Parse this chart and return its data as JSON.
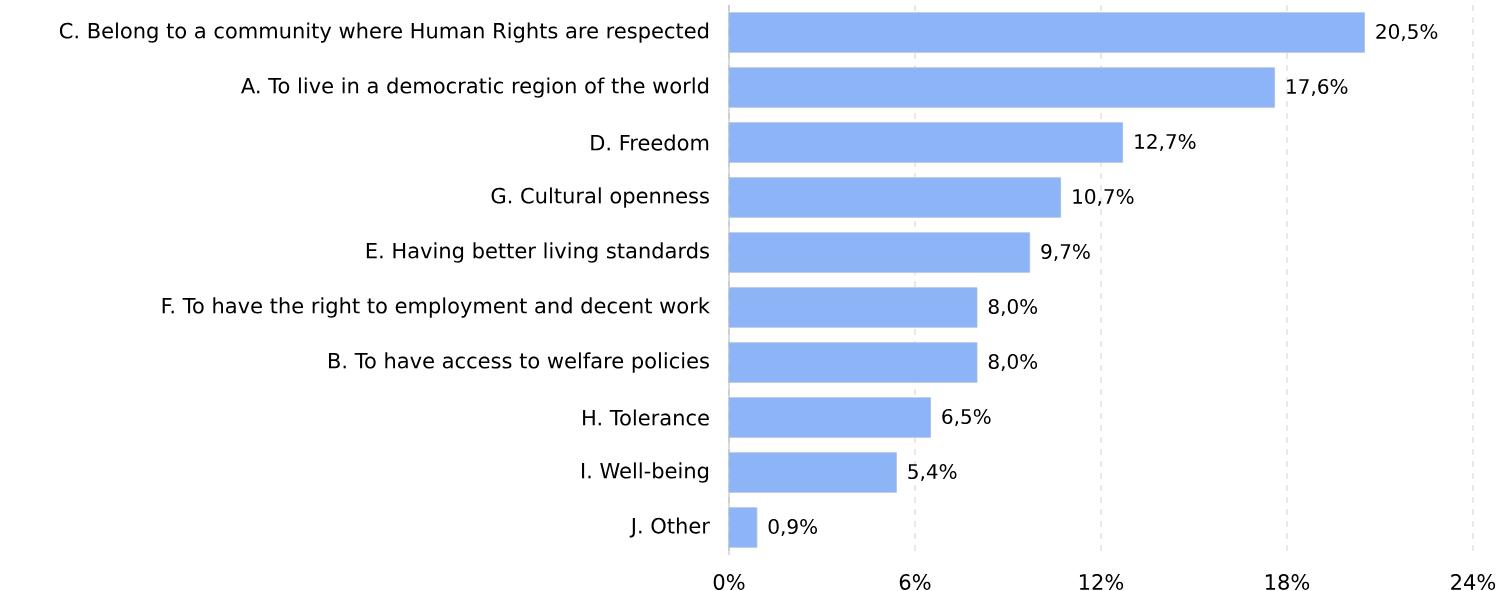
{
  "chart_data": {
    "type": "bar",
    "orientation": "horizontal",
    "categories": [
      "C. Belong to a community where Human Rights are respected",
      "A. To live in a democratic region of the world",
      "D. Freedom",
      "G. Cultural openness",
      "E. Having better living standards",
      "F. To have the right to employment and decent work",
      "B. To have access to welfare policies",
      "H. Tolerance",
      "I. Well-being",
      "J. Other"
    ],
    "values": [
      20.5,
      17.6,
      12.7,
      10.7,
      9.7,
      8.0,
      8.0,
      6.5,
      5.4,
      0.9
    ],
    "value_labels": [
      "20,5%",
      "17,6%",
      "12,7%",
      "10,7%",
      "9,7%",
      "8,0%",
      "8,0%",
      "6,5%",
      "5,4%",
      "0,9%"
    ],
    "color": "#8db4f7",
    "xlim": [
      0,
      24
    ],
    "xticks": [
      {
        "value": 0,
        "label": "0%"
      },
      {
        "value": 6,
        "label": "6%"
      },
      {
        "value": 12,
        "label": "12%"
      },
      {
        "value": 18,
        "label": "18%"
      },
      {
        "value": 24,
        "label": "24%"
      }
    ],
    "grid": "x"
  }
}
